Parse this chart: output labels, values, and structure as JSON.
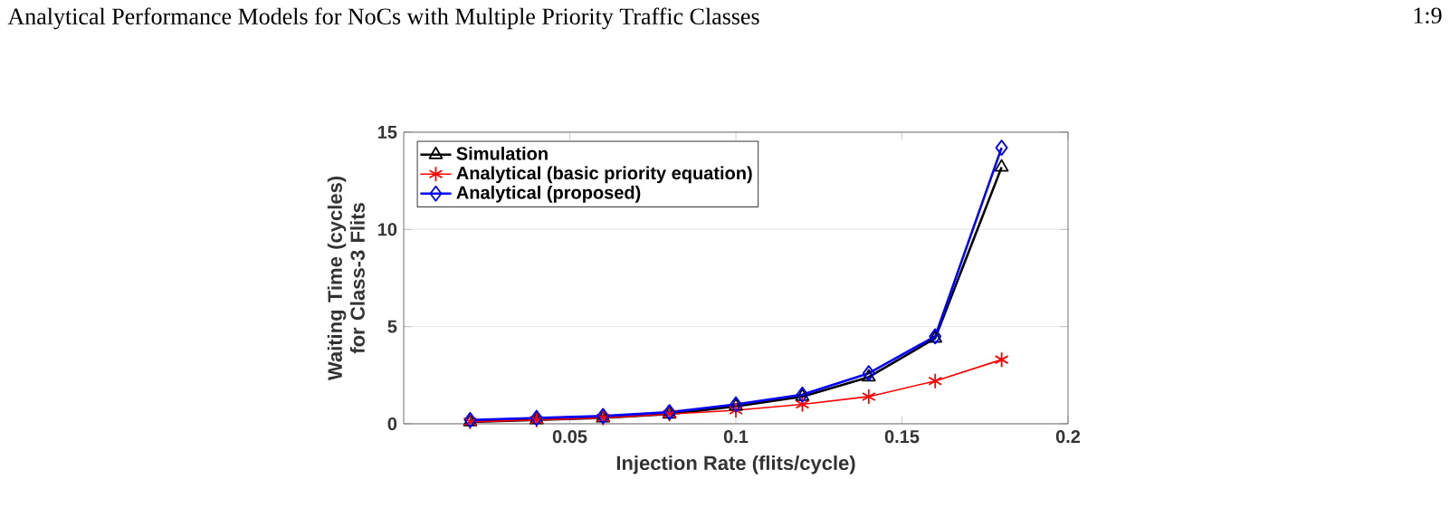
{
  "chart_data": {
    "type": "line",
    "annotations": [
      "Analytical Performance Models for NoCs with Multiple Priority Traffic Classes",
      "1:9"
    ],
    "xlabel": "Injection Rate (flits/cycle)",
    "ylabel": "Waiting Time (cycles) for Class-3 Flits",
    "x": [
      0.02,
      0.04,
      0.06,
      0.08,
      0.1,
      0.12,
      0.14,
      0.16,
      0.18
    ],
    "series": [
      {
        "name": "Simulation",
        "color": "#000000",
        "marker": "triangle",
        "values": [
          0.1,
          0.2,
          0.3,
          0.5,
          0.9,
          1.4,
          2.4,
          4.4,
          13.2
        ]
      },
      {
        "name": "Analytical (basic priority equation)",
        "color": "#ff0000",
        "marker": "cross",
        "values": [
          0.1,
          0.2,
          0.3,
          0.5,
          0.7,
          1.0,
          1.4,
          2.2,
          3.3
        ]
      },
      {
        "name": "Analytical (proposed)",
        "color": "#0000ff",
        "marker": "diamond",
        "values": [
          0.2,
          0.3,
          0.4,
          0.6,
          1.0,
          1.5,
          2.6,
          4.5,
          14.2
        ]
      }
    ],
    "xlim": [
      0,
      0.2
    ],
    "ylim": [
      0,
      15
    ],
    "xticks": [
      0.05,
      0.1,
      0.15,
      0.2
    ],
    "yticks": [
      0,
      5,
      10,
      15
    ],
    "grid": "y",
    "legend": "top left"
  }
}
